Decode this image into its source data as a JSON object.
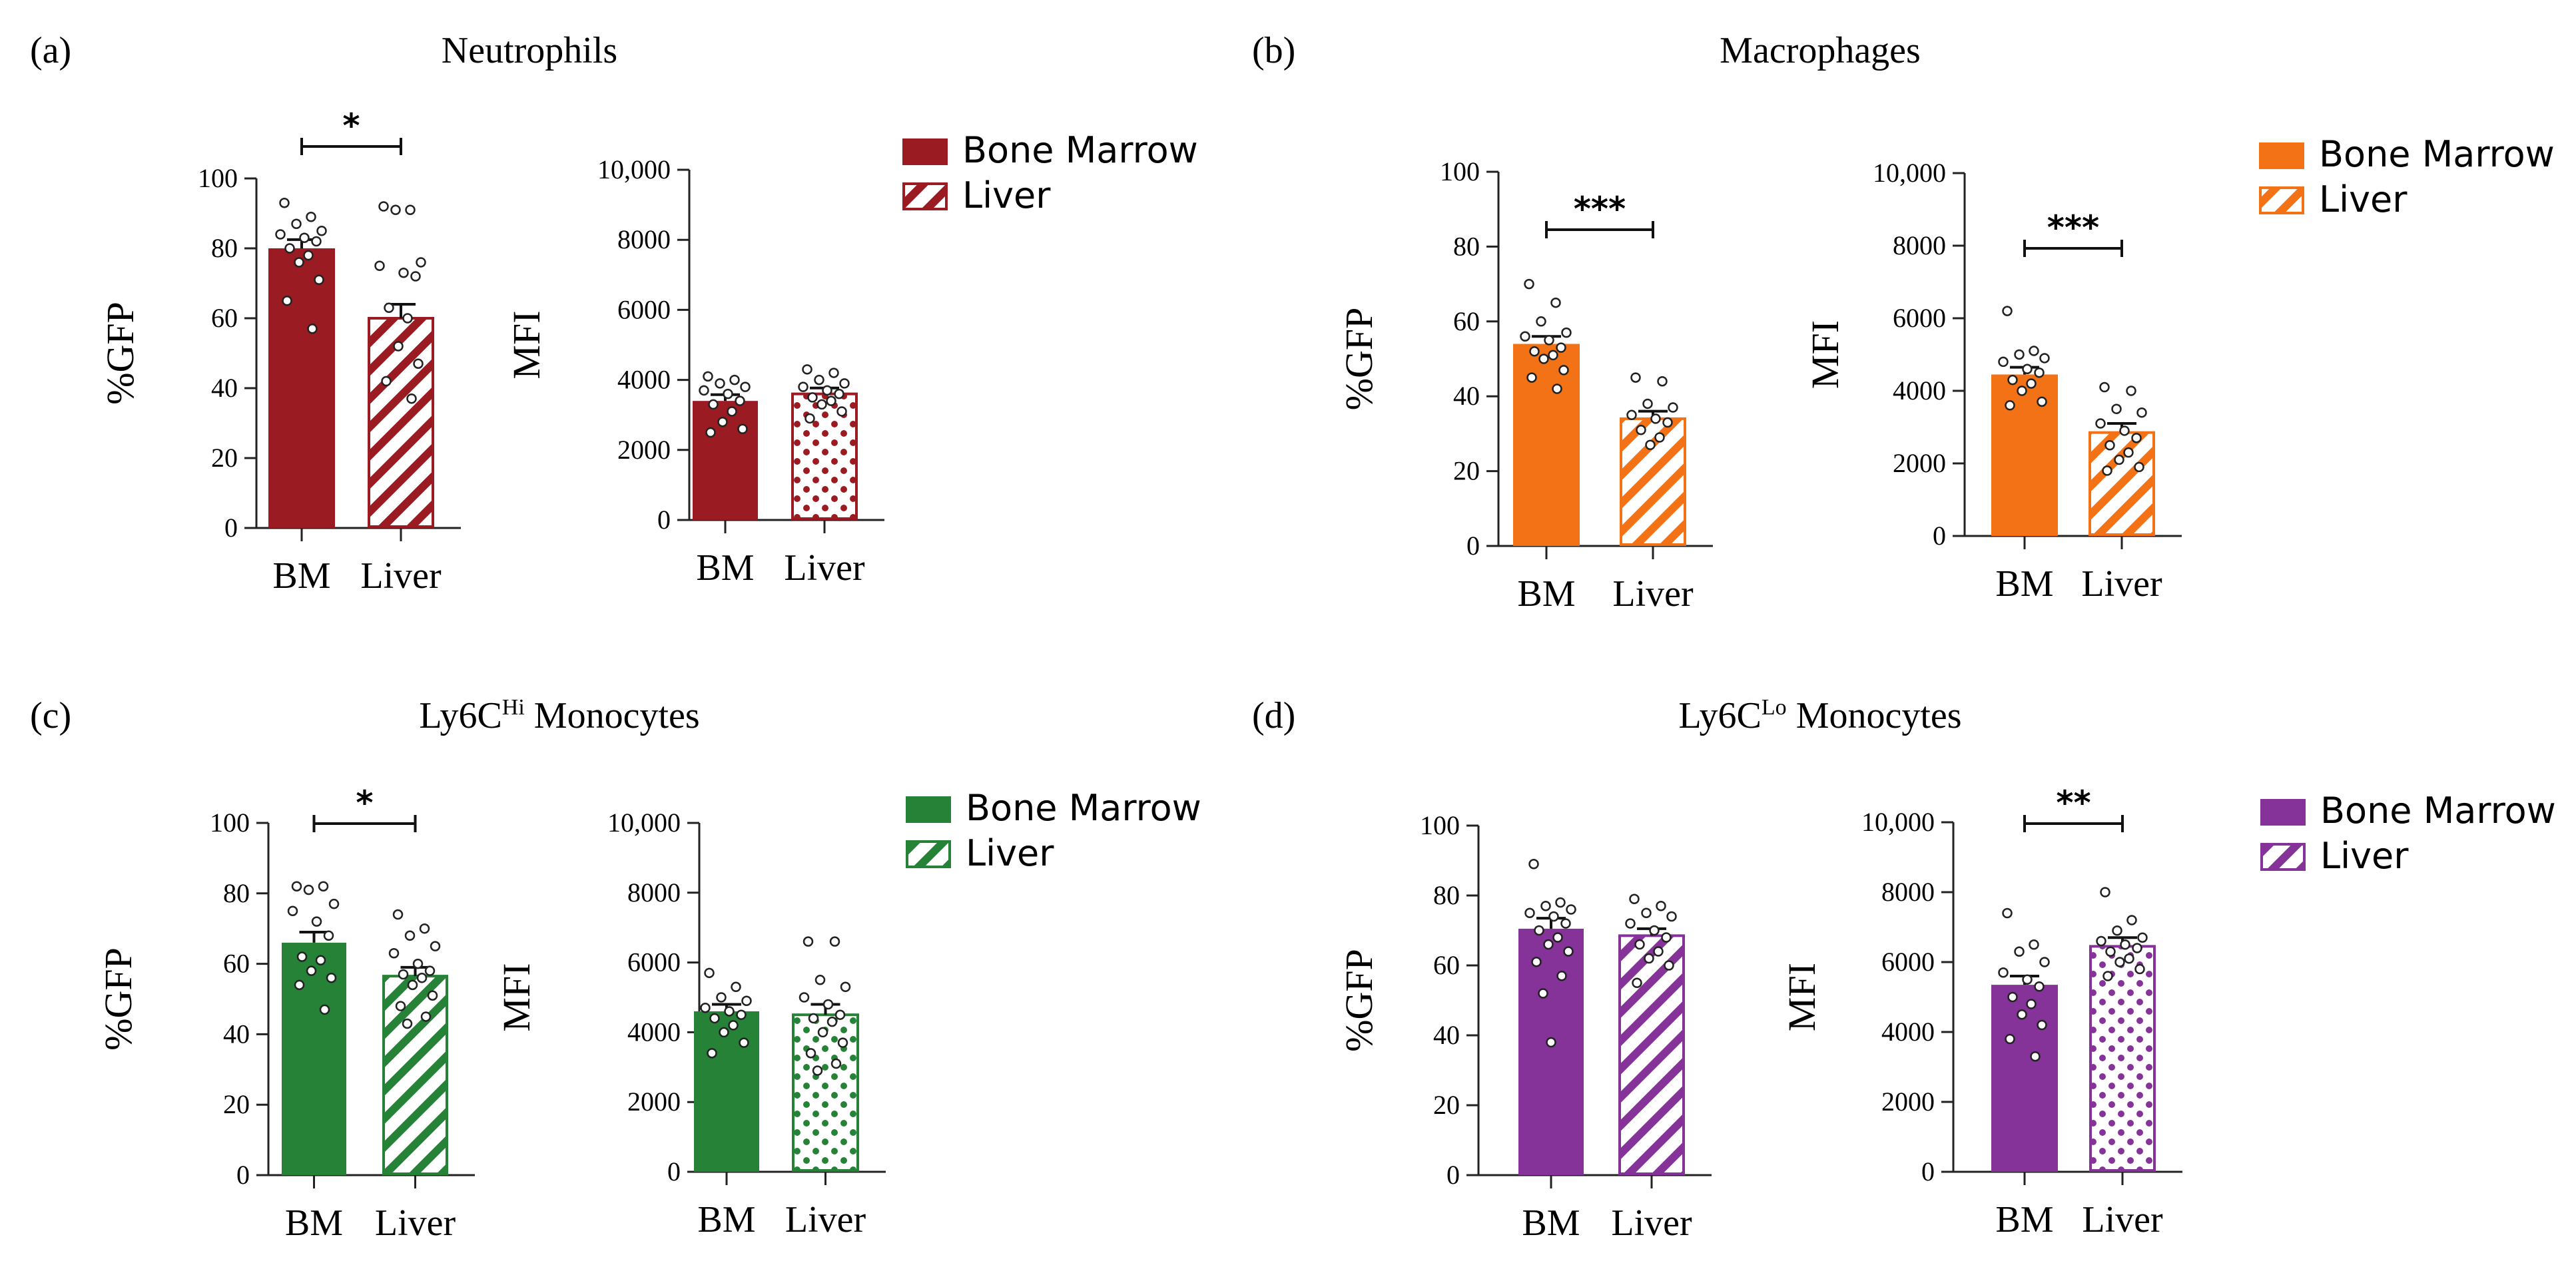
{
  "figure": {
    "panels": [
      {
        "letter": "(a)",
        "title_main": "Neutrophils",
        "title_sup": "",
        "title_tail": ""
      },
      {
        "letter": "(b)",
        "title_main": "Macrophages",
        "title_sup": "",
        "title_tail": ""
      },
      {
        "letter": "(c)",
        "title_main": "Ly6C",
        "title_sup": "Hi",
        "title_tail": " Monocytes"
      },
      {
        "letter": "(d)",
        "title_main": "Ly6C",
        "title_sup": "Lo",
        "title_tail": " Monocytes"
      }
    ],
    "legend": {
      "bm": "Bone Marrow",
      "liver": "Liver"
    },
    "colors": {
      "a": "#9b1b22",
      "b": "#f47216",
      "c": "#268237",
      "d": "#863399"
    }
  },
  "chart_data": [
    {
      "id": "a1",
      "panel": "a",
      "type": "bar",
      "ylabel": "%GFP",
      "categories": [
        "BM",
        "Liver"
      ],
      "values": [
        80,
        60
      ],
      "sem": [
        2.5,
        4
      ],
      "ylim": [
        0,
        100
      ],
      "yticks": [
        "0",
        "20",
        "40",
        "60",
        "80",
        "100"
      ],
      "significance": "*",
      "points": [
        [
          93,
          89,
          87,
          85,
          84,
          83,
          82,
          80,
          78,
          76,
          71,
          65,
          57
        ],
        [
          92,
          91,
          91,
          76,
          75,
          73,
          72,
          63,
          60,
          52,
          47,
          42,
          37
        ]
      ]
    },
    {
      "id": "a2",
      "panel": "a",
      "type": "bar",
      "ylabel": "MFI",
      "categories": [
        "BM",
        "Liver"
      ],
      "values": [
        3400,
        3600
      ],
      "sem": [
        180,
        170
      ],
      "ylim": [
        0,
        10000
      ],
      "yticks": [
        "0",
        "2000",
        "4000",
        "6000",
        "8000",
        "10,000"
      ],
      "significance": "",
      "points": [
        [
          4100,
          4000,
          3900,
          3800,
          3700,
          3600,
          3400,
          3300,
          3100,
          2800,
          2600,
          2500
        ],
        [
          4300,
          4200,
          4000,
          3900,
          3800,
          3700,
          3600,
          3500,
          3400,
          3300,
          3100,
          2900
        ]
      ]
    },
    {
      "id": "b1",
      "panel": "b",
      "type": "bar",
      "ylabel": "%GFP",
      "categories": [
        "BM",
        "Liver"
      ],
      "values": [
        54,
        34
      ],
      "sem": [
        2,
        2
      ],
      "ylim": [
        0,
        100
      ],
      "yticks": [
        "0",
        "20",
        "40",
        "60",
        "80",
        "100"
      ],
      "significance": "***",
      "points": [
        [
          70,
          65,
          60,
          57,
          56,
          55,
          53,
          52,
          51,
          50,
          47,
          45,
          42
        ],
        [
          45,
          44,
          38,
          37,
          35,
          34,
          33,
          31,
          29,
          27
        ]
      ]
    },
    {
      "id": "b2",
      "panel": "b",
      "type": "bar",
      "ylabel": "MFI",
      "categories": [
        "BM",
        "Liver"
      ],
      "values": [
        4450,
        2850
      ],
      "sem": [
        200,
        250
      ],
      "ylim": [
        0,
        10000
      ],
      "yticks": [
        "0",
        "2000",
        "4000",
        "6000",
        "8000",
        "10,000"
      ],
      "significance": "***",
      "points": [
        [
          6200,
          5100,
          5000,
          4900,
          4800,
          4600,
          4500,
          4300,
          4200,
          4000,
          3700,
          3600
        ],
        [
          4100,
          4000,
          3500,
          3400,
          3100,
          2900,
          2700,
          2500,
          2300,
          2100,
          1900,
          1800
        ]
      ]
    },
    {
      "id": "c1",
      "panel": "c",
      "type": "bar",
      "ylabel": "%GFP",
      "categories": [
        "BM",
        "Liver"
      ],
      "values": [
        66,
        56.5
      ],
      "sem": [
        3,
        2.5
      ],
      "ylim": [
        0,
        100
      ],
      "yticks": [
        "0",
        "20",
        "40",
        "60",
        "80",
        "100"
      ],
      "significance": "*",
      "points": [
        [
          82,
          82,
          81,
          77,
          75,
          72,
          68,
          62,
          61,
          58,
          56,
          54,
          47
        ],
        [
          74,
          70,
          68,
          65,
          63,
          60,
          58,
          57,
          56,
          54,
          51,
          48,
          45,
          43
        ]
      ]
    },
    {
      "id": "c2",
      "panel": "c",
      "type": "bar",
      "ylabel": "MFI",
      "categories": [
        "BM",
        "Liver"
      ],
      "values": [
        4600,
        4500
      ],
      "sem": [
        200,
        300
      ],
      "ylim": [
        0,
        10000
      ],
      "yticks": [
        "0",
        "2000",
        "4000",
        "6000",
        "8000",
        "10,000"
      ],
      "significance": "",
      "points": [
        [
          5700,
          5300,
          5000,
          4900,
          4700,
          4600,
          4500,
          4400,
          4200,
          4000,
          3700,
          3400
        ],
        [
          6600,
          6600,
          5500,
          5300,
          5000,
          4800,
          4500,
          4400,
          4300,
          4000,
          3700,
          3400,
          3100,
          2900
        ]
      ]
    },
    {
      "id": "d1",
      "panel": "d",
      "type": "bar",
      "ylabel": "%GFP",
      "categories": [
        "BM",
        "Liver"
      ],
      "values": [
        70.5,
        68.5
      ],
      "sem": [
        3,
        2
      ],
      "ylim": [
        0,
        100
      ],
      "yticks": [
        "0",
        "20",
        "40",
        "60",
        "80",
        "100"
      ],
      "significance": "",
      "points": [
        [
          89,
          78,
          77,
          76,
          75,
          74,
          72,
          70,
          68,
          66,
          64,
          61,
          57,
          52,
          38
        ],
        [
          79,
          77,
          75,
          74,
          72,
          70,
          68,
          66,
          64,
          62,
          60,
          55
        ]
      ]
    },
    {
      "id": "d2",
      "panel": "d",
      "type": "bar",
      "ylabel": "MFI",
      "categories": [
        "BM",
        "Liver"
      ],
      "values": [
        5350,
        6450
      ],
      "sem": [
        250,
        250
      ],
      "ylim": [
        0,
        10000
      ],
      "yticks": [
        "0",
        "2000",
        "4000",
        "6000",
        "8000",
        "10,000"
      ],
      "significance": "**",
      "points": [
        [
          7400,
          6500,
          6300,
          6000,
          5700,
          5500,
          5300,
          5000,
          4800,
          4500,
          4200,
          3800,
          3300
        ],
        [
          8000,
          7200,
          6900,
          6700,
          6600,
          6500,
          6400,
          6300,
          6100,
          6000,
          5800,
          5600
        ]
      ]
    }
  ]
}
